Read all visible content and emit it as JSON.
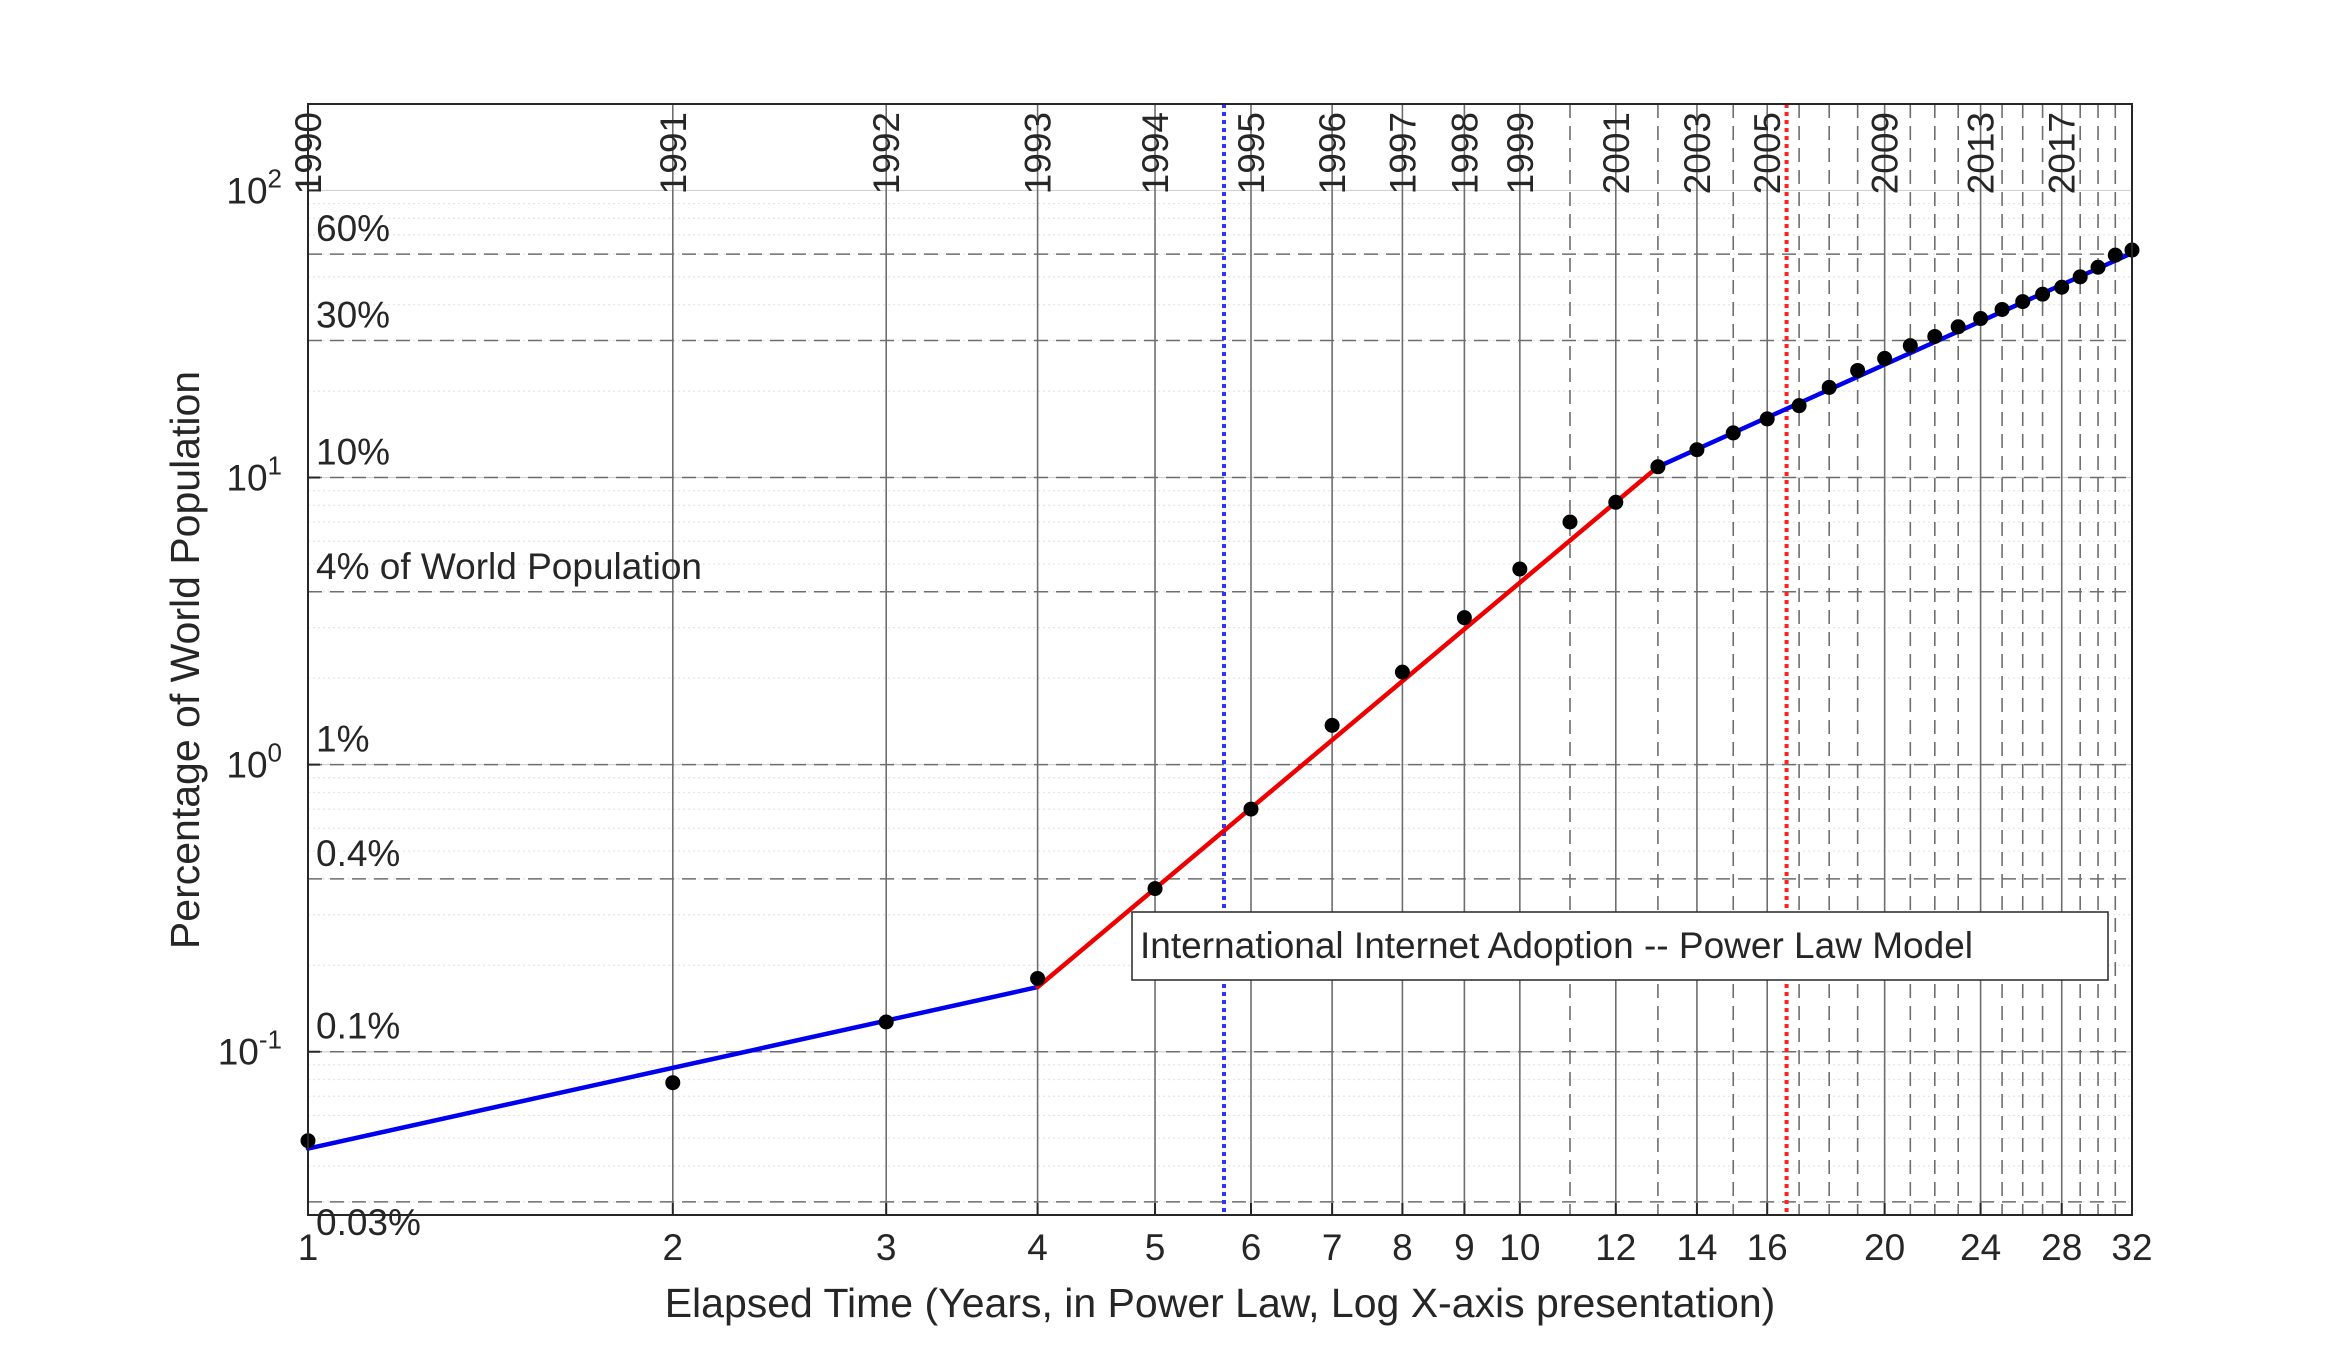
{
  "chart_data": {
    "type": "line",
    "title": "",
    "xlabel": "Elapsed Time (Years, in Power Law, Log X-axis presentation)",
    "ylabel": "Percentage of World Population",
    "xscale": "log",
    "yscale": "log",
    "xlim": [
      1,
      32
    ],
    "ylim": [
      0.027,
      200
    ],
    "grid": true,
    "x_ticks": [
      {
        "value": 1,
        "label": "1"
      },
      {
        "value": 2,
        "label": "2"
      },
      {
        "value": 3,
        "label": "3"
      },
      {
        "value": 4,
        "label": "4"
      },
      {
        "value": 5,
        "label": "5"
      },
      {
        "value": 6,
        "label": "6"
      },
      {
        "value": 7,
        "label": "7"
      },
      {
        "value": 8,
        "label": "8"
      },
      {
        "value": 9,
        "label": "9"
      },
      {
        "value": 10,
        "label": "10"
      },
      {
        "value": 12,
        "label": "12"
      },
      {
        "value": 14,
        "label": "14"
      },
      {
        "value": 16,
        "label": "16"
      },
      {
        "value": 20,
        "label": "20"
      },
      {
        "value": 24,
        "label": "24"
      },
      {
        "value": 28,
        "label": "28"
      },
      {
        "value": 32,
        "label": "32"
      }
    ],
    "y_ticks": [
      {
        "value": 0.1,
        "base": "10",
        "exp": "-1"
      },
      {
        "value": 1,
        "base": "10",
        "exp": "0"
      },
      {
        "value": 10,
        "base": "10",
        "exp": "1"
      },
      {
        "value": 100,
        "base": "10",
        "exp": "2"
      }
    ],
    "year_lines": [
      {
        "x": 1,
        "label": "1990",
        "style": "solid"
      },
      {
        "x": 2,
        "label": "1991",
        "style": "solid"
      },
      {
        "x": 3,
        "label": "1992",
        "style": "solid"
      },
      {
        "x": 4,
        "label": "1993",
        "style": "solid"
      },
      {
        "x": 5,
        "label": "1994",
        "style": "solid"
      },
      {
        "x": 6,
        "label": "1995",
        "style": "solid"
      },
      {
        "x": 7,
        "label": "1996",
        "style": "solid"
      },
      {
        "x": 8,
        "label": "1997",
        "style": "solid"
      },
      {
        "x": 9,
        "label": "1998",
        "style": "solid"
      },
      {
        "x": 10,
        "label": "1999",
        "style": "solid"
      },
      {
        "x": 11,
        "label": "",
        "style": "dashed"
      },
      {
        "x": 12,
        "label": "2001",
        "style": "solid"
      },
      {
        "x": 13,
        "label": "",
        "style": "dashed"
      },
      {
        "x": 14,
        "label": "2003",
        "style": "solid"
      },
      {
        "x": 15,
        "label": "",
        "style": "dashed"
      },
      {
        "x": 16,
        "label": "2005",
        "style": "solid"
      },
      {
        "x": 17,
        "label": "",
        "style": "dashed"
      },
      {
        "x": 18,
        "label": "",
        "style": "dashed"
      },
      {
        "x": 19,
        "label": "",
        "style": "dashed"
      },
      {
        "x": 20,
        "label": "2009",
        "style": "solid"
      },
      {
        "x": 21,
        "label": "",
        "style": "dashed"
      },
      {
        "x": 22,
        "label": "",
        "style": "dashed"
      },
      {
        "x": 23,
        "label": "",
        "style": "dashed"
      },
      {
        "x": 24,
        "label": "2013",
        "style": "solid"
      },
      {
        "x": 25,
        "label": "",
        "style": "dashed"
      },
      {
        "x": 26,
        "label": "",
        "style": "dashed"
      },
      {
        "x": 27,
        "label": "",
        "style": "dashed"
      },
      {
        "x": 28,
        "label": "2017",
        "style": "solid"
      },
      {
        "x": 29,
        "label": "",
        "style": "dashed"
      },
      {
        "x": 30,
        "label": "",
        "style": "dashed"
      },
      {
        "x": 31,
        "label": "",
        "style": "dashed"
      }
    ],
    "percent_lines": [
      {
        "y": 0.03,
        "label": "0.03%"
      },
      {
        "y": 0.1,
        "label": "0.1%"
      },
      {
        "y": 0.4,
        "label": "0.4%"
      },
      {
        "y": 1,
        "label": "1%"
      },
      {
        "y": 4,
        "label": "4% of World Population"
      },
      {
        "y": 10,
        "label": "10%"
      },
      {
        "y": 30,
        "label": "30%"
      },
      {
        "y": 60,
        "label": "60%"
      }
    ],
    "marker_lines": [
      {
        "x": 5.7,
        "color": "#3333ff"
      },
      {
        "x": 16.6,
        "color": "#ff2222"
      }
    ],
    "annotation": "International Internet Adoption -- Power Law Model",
    "points": [
      [
        1,
        0.049
      ],
      [
        2,
        0.078
      ],
      [
        3,
        0.127
      ],
      [
        4,
        0.18
      ],
      [
        5,
        0.37
      ],
      [
        6,
        0.7
      ],
      [
        7,
        1.37
      ],
      [
        8,
        2.1
      ],
      [
        9,
        3.25
      ],
      [
        10,
        4.8
      ],
      [
        11,
        7.0
      ],
      [
        12,
        8.2
      ],
      [
        13,
        10.9
      ],
      [
        14,
        12.5
      ],
      [
        15,
        14.3
      ],
      [
        16,
        16.0
      ],
      [
        17,
        17.8
      ],
      [
        18,
        20.6
      ],
      [
        19,
        23.6
      ],
      [
        20,
        26.0
      ],
      [
        21,
        28.8
      ],
      [
        22,
        31.0
      ],
      [
        23,
        33.5
      ],
      [
        24,
        35.8
      ],
      [
        25,
        38.5
      ],
      [
        26,
        41.0
      ],
      [
        27,
        43.5
      ],
      [
        28,
        46.0
      ],
      [
        29,
        50.0
      ],
      [
        30,
        54.0
      ],
      [
        31,
        59.5
      ],
      [
        32,
        62.0
      ]
    ],
    "series": [
      {
        "color": "#0000ee",
        "points": [
          [
            1,
            0.046
          ],
          [
            4,
            0.168
          ]
        ]
      },
      {
        "color": "#ee0000",
        "points": [
          [
            4,
            0.168
          ],
          [
            13,
            10.9
          ]
        ]
      },
      {
        "color": "#0000ee",
        "points": [
          [
            13,
            10.9
          ],
          [
            32,
            60.5
          ]
        ]
      }
    ]
  }
}
